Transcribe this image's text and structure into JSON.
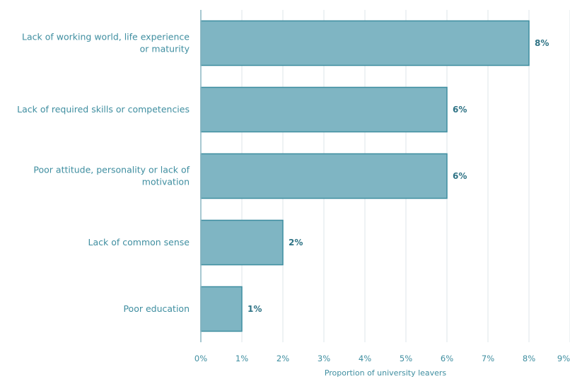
{
  "chart_data": {
    "type": "bar",
    "orientation": "horizontal",
    "categories": [
      [
        "Lack of working world, life experience",
        "or maturity"
      ],
      [
        "Lack of required skills or competencies"
      ],
      [
        "Poor attitude, personality or lack of",
        "motivation"
      ],
      [
        "Lack of common sense"
      ],
      [
        "Poor education"
      ]
    ],
    "values": [
      8,
      6,
      6,
      2,
      1
    ],
    "value_labels": [
      "8%",
      "6%",
      "6%",
      "2%",
      "1%"
    ],
    "x_ticks": [
      "0%",
      "1%",
      "2%",
      "3%",
      "4%",
      "5%",
      "6%",
      "7%",
      "8%",
      "9%"
    ],
    "xlim": [
      0,
      9
    ],
    "title": "",
    "xlabel": "Proportion of university leavers",
    "ylabel": "",
    "grid": "vertical",
    "colors": {
      "bar_fill": "#7fb5c3",
      "bar_stroke": "#3f8ea0",
      "grid": "#dde6ea",
      "axis": "#8ab6c2",
      "text": "#3f8ea0"
    }
  }
}
